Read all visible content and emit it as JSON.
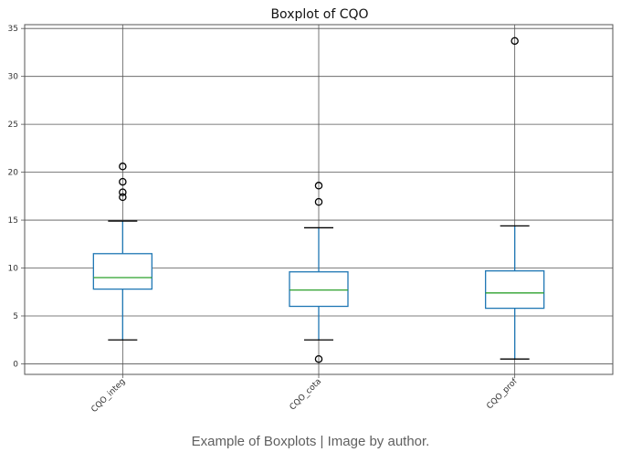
{
  "caption": "Example of Boxplots | Image by author.",
  "chart_data": {
    "type": "boxplot",
    "title": "Boxplot of CQO",
    "xlabel": "",
    "ylabel": "",
    "ylim": [
      -1.1,
      35.4
    ],
    "yticks": [
      0,
      5,
      10,
      15,
      20,
      25,
      30,
      35
    ],
    "grid": true,
    "categories": [
      "CQO_integ",
      "CQO_cota",
      "CQO_prof"
    ],
    "boxes": [
      {
        "name": "CQO_integ",
        "whislo": 2.5,
        "q1": 7.8,
        "med": 9.0,
        "q3": 11.5,
        "whishi": 14.9,
        "fliers": [
          17.4,
          17.9,
          19.0,
          20.6
        ]
      },
      {
        "name": "CQO_cota",
        "whislo": 2.5,
        "q1": 6.0,
        "med": 7.7,
        "q3": 9.6,
        "whishi": 14.2,
        "fliers": [
          0.5,
          16.9,
          18.6
        ]
      },
      {
        "name": "CQO_prof",
        "whislo": 0.5,
        "q1": 5.8,
        "med": 7.4,
        "q3": 9.7,
        "whishi": 14.4,
        "fliers": [
          33.7
        ]
      }
    ],
    "colors": {
      "box": "#1f77b4",
      "median": "#2ca02c",
      "whisker": "#1f77b4",
      "cap": "#000000",
      "flier": "#000000",
      "grid": "#555555",
      "frame": "#555555"
    }
  }
}
